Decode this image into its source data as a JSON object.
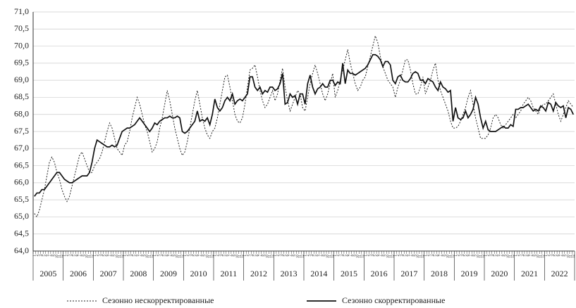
{
  "chart_data": {
    "type": "line",
    "categories": [
      "1",
      "2",
      "3",
      "4",
      "5",
      "6",
      "7",
      "8",
      "9",
      "10",
      "11",
      "12",
      "1",
      "2",
      "3",
      "4",
      "5",
      "6",
      "7",
      "8",
      "9",
      "10",
      "11",
      "12",
      "1",
      "2",
      "3",
      "4",
      "5",
      "6",
      "7",
      "8",
      "9",
      "10",
      "11",
      "12",
      "1",
      "2",
      "3",
      "4",
      "5",
      "6",
      "7",
      "8",
      "9",
      "10",
      "11",
      "12",
      "1",
      "2",
      "3",
      "4",
      "5",
      "6",
      "7",
      "8",
      "9",
      "10",
      "11",
      "12",
      "1",
      "2",
      "3",
      "4",
      "5",
      "6",
      "7",
      "8",
      "9",
      "10",
      "11",
      "12",
      "1",
      "2",
      "3",
      "4",
      "5",
      "6",
      "7",
      "8",
      "9",
      "10",
      "11",
      "12",
      "1",
      "2",
      "3",
      "4",
      "5",
      "6",
      "7",
      "8",
      "9",
      "10",
      "11",
      "12",
      "1",
      "2",
      "3",
      "4",
      "5",
      "6",
      "7",
      "8",
      "9",
      "10",
      "11",
      "12",
      "1",
      "2",
      "3",
      "4",
      "5",
      "6",
      "7",
      "8",
      "9",
      "10",
      "11",
      "12",
      "1",
      "2",
      "3",
      "4",
      "5",
      "6",
      "7",
      "8",
      "9",
      "10",
      "11",
      "12",
      "1",
      "2",
      "3",
      "4",
      "5",
      "6",
      "7",
      "8",
      "9",
      "10",
      "11",
      "12",
      "1",
      "2",
      "3",
      "4",
      "5",
      "6",
      "7",
      "8",
      "9",
      "10",
      "11",
      "12",
      "1",
      "2",
      "3",
      "4",
      "5",
      "6",
      "7",
      "8",
      "9",
      "10",
      "11",
      "12",
      "1",
      "2",
      "3",
      "4",
      "5",
      "6",
      "7",
      "8",
      "9",
      "10",
      "11",
      "12",
      "1",
      "2",
      "3",
      "4",
      "5",
      "6",
      "7",
      "8",
      "9",
      "10",
      "11",
      "12",
      "1",
      "2",
      "3",
      "4",
      "5",
      "6",
      "7",
      "8",
      "9",
      "10",
      "11",
      "12",
      "1",
      "2",
      "3",
      "4",
      "5",
      "6",
      "7",
      "8",
      "9",
      "10",
      "11",
      "12"
    ],
    "years": [
      "2005",
      "2006",
      "2007",
      "2008",
      "2009",
      "2010",
      "2011",
      "2012",
      "2013",
      "2014",
      "2015",
      "2016",
      "2017",
      "2018",
      "2019",
      "2020",
      "2021",
      "2022"
    ],
    "series": [
      {
        "name": "Сезонно нескорректированные",
        "color": "#222",
        "dash": true,
        "values": [
          65.1,
          65.0,
          65.2,
          65.5,
          65.8,
          66.2,
          66.6,
          66.75,
          66.6,
          66.3,
          66.1,
          65.8,
          65.6,
          65.45,
          65.6,
          65.9,
          66.2,
          66.5,
          66.8,
          66.9,
          66.7,
          66.5,
          66.3,
          66.3,
          66.5,
          66.6,
          66.7,
          66.9,
          67.2,
          67.5,
          67.75,
          67.6,
          67.3,
          67.0,
          66.9,
          66.8,
          67.1,
          67.2,
          67.5,
          67.9,
          68.2,
          68.5,
          68.3,
          68.0,
          67.7,
          67.5,
          67.2,
          66.9,
          67.0,
          67.2,
          67.6,
          67.9,
          68.3,
          68.7,
          68.4,
          68.0,
          67.6,
          67.3,
          67.0,
          66.8,
          66.9,
          67.2,
          67.6,
          68.0,
          68.4,
          68.7,
          68.3,
          67.9,
          67.6,
          67.4,
          67.3,
          67.5,
          67.6,
          67.9,
          68.3,
          68.7,
          69.1,
          69.15,
          68.8,
          68.4,
          68.0,
          67.8,
          67.75,
          67.9,
          68.3,
          68.8,
          69.3,
          69.35,
          69.45,
          69.1,
          68.7,
          68.4,
          68.2,
          68.3,
          68.5,
          68.7,
          68.4,
          68.6,
          69.0,
          69.35,
          68.8,
          68.4,
          68.1,
          68.3,
          68.5,
          68.7,
          68.6,
          68.2,
          68.1,
          68.5,
          68.9,
          69.2,
          69.45,
          69.2,
          68.9,
          68.6,
          68.4,
          68.6,
          68.9,
          69.2,
          68.5,
          68.7,
          69.0,
          69.3,
          69.6,
          69.9,
          69.5,
          69.2,
          68.9,
          68.7,
          68.8,
          69.0,
          69.1,
          69.4,
          69.7,
          70.0,
          70.3,
          70.1,
          69.7,
          69.4,
          69.2,
          69.0,
          68.9,
          68.8,
          68.5,
          68.8,
          69.0,
          69.3,
          69.6,
          69.6,
          69.3,
          68.9,
          68.6,
          68.6,
          68.8,
          69.1,
          68.6,
          68.8,
          69.0,
          69.3,
          69.5,
          69.0,
          68.7,
          68.5,
          68.3,
          68.1,
          67.8,
          67.6,
          67.6,
          67.65,
          67.8,
          68.0,
          68.2,
          68.5,
          68.7,
          68.3,
          67.9,
          67.6,
          67.3,
          67.3,
          67.3,
          67.4,
          67.6,
          67.9,
          68.0,
          67.9,
          67.7,
          67.6,
          67.7,
          67.8,
          67.9,
          68.0,
          67.9,
          68.0,
          68.1,
          68.3,
          68.4,
          68.5,
          68.4,
          68.2,
          68.1,
          68.0,
          68.2,
          68.3,
          68.3,
          68.4,
          68.5,
          68.6,
          68.3,
          68.0,
          67.8,
          68.0,
          68.2,
          68.4,
          68.3,
          68.2
        ]
      },
      {
        "name": "Сезонно скорректированные",
        "color": "#111",
        "dash": false,
        "values": [
          65.6,
          65.7,
          65.7,
          65.8,
          65.8,
          65.9,
          66.0,
          66.1,
          66.2,
          66.3,
          66.3,
          66.2,
          66.1,
          66.05,
          66.0,
          66.0,
          66.05,
          66.1,
          66.15,
          66.2,
          66.2,
          66.2,
          66.3,
          66.6,
          67.0,
          67.25,
          67.2,
          67.15,
          67.1,
          67.05,
          67.05,
          67.1,
          67.05,
          67.1,
          67.3,
          67.5,
          67.55,
          67.6,
          67.6,
          67.65,
          67.7,
          67.8,
          67.9,
          67.8,
          67.7,
          67.6,
          67.5,
          67.6,
          67.75,
          67.7,
          67.8,
          67.85,
          67.9,
          67.9,
          67.95,
          67.9,
          67.9,
          67.95,
          67.9,
          67.5,
          67.45,
          67.5,
          67.6,
          67.7,
          67.8,
          68.1,
          67.8,
          67.85,
          67.8,
          67.9,
          67.7,
          68.0,
          68.45,
          68.2,
          68.1,
          68.2,
          68.4,
          68.5,
          68.4,
          68.6,
          68.3,
          68.4,
          68.45,
          68.4,
          68.5,
          68.6,
          69.1,
          69.1,
          68.8,
          68.7,
          68.8,
          68.6,
          68.7,
          68.65,
          68.8,
          68.8,
          68.7,
          68.75,
          68.9,
          69.2,
          68.3,
          68.35,
          68.6,
          68.5,
          68.55,
          68.3,
          68.6,
          68.6,
          68.3,
          68.9,
          69.15,
          68.8,
          68.6,
          68.75,
          68.8,
          68.9,
          68.8,
          68.8,
          69.0,
          69.0,
          68.85,
          68.95,
          68.9,
          69.5,
          68.9,
          69.3,
          69.2,
          69.2,
          69.15,
          69.2,
          69.25,
          69.3,
          69.35,
          69.45,
          69.6,
          69.75,
          69.75,
          69.7,
          69.6,
          69.4,
          69.55,
          69.55,
          69.45,
          69.0,
          68.9,
          69.1,
          69.15,
          69.0,
          68.95,
          68.95,
          69.05,
          69.2,
          69.25,
          69.2,
          69.0,
          69.0,
          68.9,
          69.05,
          69.0,
          68.95,
          68.8,
          68.7,
          68.95,
          68.8,
          68.75,
          68.65,
          68.7,
          67.8,
          68.2,
          67.9,
          67.85,
          67.9,
          68.1,
          67.9,
          68.0,
          68.15,
          68.5,
          68.3,
          67.9,
          67.6,
          67.8,
          67.55,
          67.5,
          67.5,
          67.5,
          67.55,
          67.6,
          67.65,
          67.6,
          67.6,
          67.7,
          67.65,
          68.15,
          68.15,
          68.2,
          68.2,
          68.25,
          68.3,
          68.2,
          68.1,
          68.15,
          68.1,
          68.25,
          68.2,
          68.1,
          68.35,
          68.3,
          68.1,
          68.35,
          68.25,
          68.2,
          68.25,
          67.9,
          68.2,
          68.15,
          68.0
        ]
      }
    ],
    "ylim": [
      64.0,
      71.0
    ],
    "yticks": [
      {
        "value": 64.0,
        "label": "64,0"
      },
      {
        "value": 64.5,
        "label": "64,5"
      },
      {
        "value": 65.0,
        "label": "65,0"
      },
      {
        "value": 65.5,
        "label": "65,5"
      },
      {
        "value": 66.0,
        "label": "66,0"
      },
      {
        "value": 66.5,
        "label": "66,5"
      },
      {
        "value": 67.0,
        "label": "67,0"
      },
      {
        "value": 67.5,
        "label": "67,5"
      },
      {
        "value": 68.0,
        "label": "68,0"
      },
      {
        "value": 68.5,
        "label": "68,5"
      },
      {
        "value": 69.0,
        "label": "69,0"
      },
      {
        "value": 69.5,
        "label": "69,5"
      },
      {
        "value": 70.0,
        "label": "70,0"
      },
      {
        "value": 70.5,
        "label": "70,5"
      },
      {
        "value": 71.0,
        "label": "71,0"
      }
    ],
    "grid": true
  }
}
